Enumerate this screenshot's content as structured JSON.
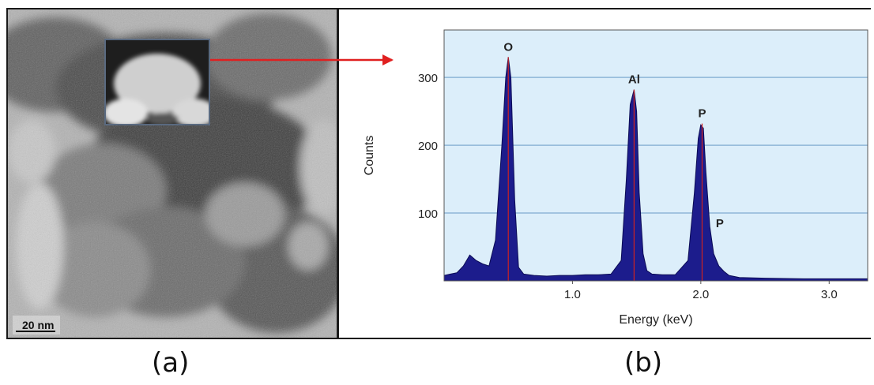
{
  "figure": {
    "panel_a_label": "(a)",
    "panel_b_label": "(b)",
    "scale_bar": "20 nm"
  },
  "colors": {
    "plot_background": "#dceefa",
    "spectrum_fill": "#1c1c8c",
    "peak_marker": "#cc2222",
    "gridline": "#8fb6d8",
    "arrow": "#e02020"
  },
  "chart_data": {
    "type": "area",
    "title": "",
    "xlabel": "Energy (keV)",
    "ylabel": "Counts",
    "xlim": [
      0.0,
      3.3
    ],
    "ylim": [
      0,
      370
    ],
    "xticks": [
      1.0,
      2.0,
      3.0
    ],
    "xtick_labels": [
      "1.0",
      "2.0",
      "3.0"
    ],
    "yticks": [
      100,
      200,
      300
    ],
    "ytick_labels": [
      "100",
      "200",
      "300"
    ],
    "grid": "horizontal",
    "series": [
      {
        "x": [
          0.0,
          0.05,
          0.1,
          0.15,
          0.2,
          0.25,
          0.3,
          0.35,
          0.4,
          0.45,
          0.48,
          0.5,
          0.52,
          0.55,
          0.58,
          0.62,
          0.7,
          0.8,
          0.9,
          1.0,
          1.1,
          1.2,
          1.3,
          1.38,
          1.42,
          1.45,
          1.48,
          1.5,
          1.52,
          1.55,
          1.58,
          1.62,
          1.7,
          1.8,
          1.9,
          1.95,
          1.98,
          2.0,
          2.02,
          2.04,
          2.07,
          2.1,
          2.14,
          2.18,
          2.22,
          2.3,
          2.5,
          2.8,
          3.0,
          3.3
        ],
        "y": [
          8,
          10,
          12,
          22,
          38,
          30,
          25,
          22,
          60,
          200,
          300,
          330,
          300,
          120,
          20,
          10,
          8,
          7,
          8,
          8,
          9,
          9,
          10,
          30,
          150,
          260,
          282,
          250,
          130,
          40,
          15,
          10,
          9,
          9,
          30,
          130,
          210,
          230,
          225,
          160,
          80,
          40,
          22,
          14,
          8,
          5,
          4,
          3,
          3,
          3
        ]
      }
    ],
    "peak_markers": [
      {
        "label": "O",
        "x": 0.5,
        "y": 330
      },
      {
        "label": "Al",
        "x": 1.48,
        "y": 282
      },
      {
        "label": "P",
        "x": 2.01,
        "y": 232
      },
      {
        "label": "P",
        "x": 2.08,
        "y": 70
      }
    ]
  }
}
